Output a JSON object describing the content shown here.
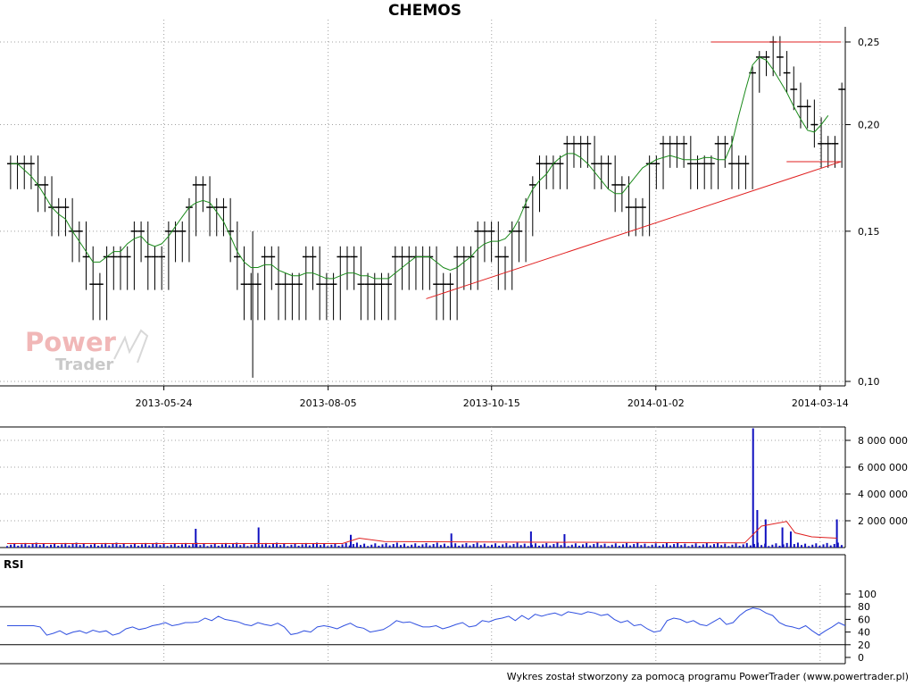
{
  "title": "CHEMOS",
  "footer": "Wykres został stworzony za pomocą programu PowerTrader (www.powertrader.pl)",
  "logo": {
    "line1": "Power",
    "line2": "Trader"
  },
  "colors": {
    "price": "#000000",
    "ma": "#1a8a1a",
    "trendline": "#e02020",
    "volume": "#1010c0",
    "volume_ma": "#e02020",
    "rsi": "#3050e0",
    "grid": "#a0a0a0"
  },
  "chart_data": [
    {
      "type": "candlestick",
      "title": "CHEMOS",
      "x_tick_labels": [
        "2013-05-24",
        "2013-08-05",
        "2013-10-15",
        "2014-01-02",
        "2014-03-14"
      ],
      "y_tick_labels": [
        "0,25",
        "0,20",
        "0,15",
        "0,10"
      ],
      "y_ticks": [
        0.25,
        0.2,
        0.15,
        0.1
      ],
      "ylim": [
        0.1,
        0.25
      ],
      "y_scale": "log",
      "grid": true,
      "close": [
        0.18,
        0.18,
        0.18,
        0.18,
        0.17,
        0.17,
        0.16,
        0.16,
        0.16,
        0.15,
        0.15,
        0.14,
        0.13,
        0.13,
        0.14,
        0.14,
        0.14,
        0.14,
        0.15,
        0.15,
        0.14,
        0.14,
        0.14,
        0.15,
        0.15,
        0.15,
        0.16,
        0.17,
        0.17,
        0.16,
        0.16,
        0.16,
        0.15,
        0.14,
        0.13,
        0.13,
        0.13,
        0.14,
        0.14,
        0.13,
        0.13,
        0.13,
        0.13,
        0.14,
        0.14,
        0.13,
        0.13,
        0.13,
        0.14,
        0.14,
        0.14,
        0.13,
        0.13,
        0.13,
        0.13,
        0.13,
        0.14,
        0.14,
        0.14,
        0.14,
        0.14,
        0.14,
        0.13,
        0.13,
        0.13,
        0.14,
        0.14,
        0.14,
        0.15,
        0.15,
        0.15,
        0.14,
        0.14,
        0.15,
        0.15,
        0.16,
        0.17,
        0.18,
        0.18,
        0.18,
        0.18,
        0.19,
        0.19,
        0.19,
        0.19,
        0.18,
        0.18,
        0.18,
        0.17,
        0.17,
        0.16,
        0.16,
        0.16,
        0.18,
        0.18,
        0.19,
        0.19,
        0.19,
        0.19,
        0.18,
        0.18,
        0.18,
        0.18,
        0.19,
        0.19,
        0.18,
        0.18,
        0.18,
        0.23,
        0.24,
        0.24,
        0.25,
        0.24,
        0.23,
        0.22,
        0.21,
        0.21,
        0.2,
        0.19,
        0.19,
        0.19,
        0.22
      ],
      "moving_average": [
        0.18,
        0.18,
        0.177,
        0.174,
        0.17,
        0.165,
        0.16,
        0.157,
        0.155,
        0.15,
        0.146,
        0.142,
        0.138,
        0.138,
        0.14,
        0.142,
        0.142,
        0.145,
        0.147,
        0.148,
        0.145,
        0.144,
        0.145,
        0.148,
        0.152,
        0.156,
        0.16,
        0.162,
        0.163,
        0.162,
        0.158,
        0.154,
        0.148,
        0.142,
        0.138,
        0.136,
        0.136,
        0.137,
        0.137,
        0.135,
        0.134,
        0.133,
        0.133,
        0.134,
        0.134,
        0.133,
        0.132,
        0.132,
        0.133,
        0.134,
        0.134,
        0.133,
        0.133,
        0.132,
        0.132,
        0.132,
        0.134,
        0.136,
        0.138,
        0.14,
        0.14,
        0.14,
        0.138,
        0.136,
        0.135,
        0.136,
        0.138,
        0.14,
        0.143,
        0.145,
        0.146,
        0.146,
        0.147,
        0.15,
        0.155,
        0.162,
        0.168,
        0.172,
        0.175,
        0.18,
        0.183,
        0.185,
        0.185,
        0.183,
        0.18,
        0.176,
        0.172,
        0.168,
        0.166,
        0.166,
        0.17,
        0.174,
        0.178,
        0.18,
        0.182,
        0.183,
        0.184,
        0.183,
        0.182,
        0.182,
        0.182,
        0.183,
        0.183,
        0.182,
        0.182,
        0.19,
        0.205,
        0.22,
        0.235,
        0.24,
        0.238,
        0.232,
        0.225,
        0.218,
        0.21,
        0.203,
        0.197,
        0.196,
        0.2,
        0.205
      ],
      "trendlines": [
        {
          "from": [
            0.5,
            0.125
          ],
          "to": [
            0.995,
            0.181
          ]
        },
        {
          "from": [
            0.84,
            0.25
          ],
          "to": [
            0.995,
            0.25
          ]
        },
        {
          "from": [
            0.93,
            0.181
          ],
          "to": [
            0.995,
            0.181
          ]
        }
      ]
    },
    {
      "type": "bar",
      "title": "",
      "y_tick_labels": [
        "8 000 000",
        "6 000 000",
        "4 000 000",
        "2 000 000"
      ],
      "y_ticks": [
        8000000,
        6000000,
        4000000,
        2000000
      ],
      "ylim": [
        0,
        9000000
      ],
      "grid": true,
      "spikes": [
        {
          "x": 0.225,
          "value": 1400000
        },
        {
          "x": 0.3,
          "value": 1500000
        },
        {
          "x": 0.41,
          "value": 950000
        },
        {
          "x": 0.53,
          "value": 1050000
        },
        {
          "x": 0.625,
          "value": 1200000
        },
        {
          "x": 0.665,
          "value": 1000000
        },
        {
          "x": 0.89,
          "value": 8900000
        },
        {
          "x": 0.895,
          "value": 2800000
        },
        {
          "x": 0.905,
          "value": 2100000
        },
        {
          "x": 0.925,
          "value": 1500000
        },
        {
          "x": 0.935,
          "value": 1200000
        },
        {
          "x": 0.99,
          "value": 2100000
        }
      ],
      "baseline_volume": 280000,
      "volume_ma": [
        {
          "x": 0.0,
          "value": 300000
        },
        {
          "x": 0.4,
          "value": 300000
        },
        {
          "x": 0.42,
          "value": 700000
        },
        {
          "x": 0.45,
          "value": 450000
        },
        {
          "x": 0.88,
          "value": 350000
        },
        {
          "x": 0.9,
          "value": 1600000
        },
        {
          "x": 0.93,
          "value": 1950000
        },
        {
          "x": 0.94,
          "value": 1100000
        },
        {
          "x": 0.96,
          "value": 800000
        },
        {
          "x": 0.99,
          "value": 700000
        }
      ]
    },
    {
      "type": "line",
      "title": "RSI",
      "y_tick_labels": [
        "100",
        "80",
        "60",
        "40",
        "20",
        "0"
      ],
      "y_ticks": [
        100,
        80,
        60,
        40,
        20,
        0
      ],
      "ylim": [
        0,
        100
      ],
      "reference_lines": [
        80,
        20
      ],
      "grid": true,
      "values": [
        50,
        50,
        50,
        50,
        50,
        48,
        35,
        38,
        42,
        36,
        40,
        42,
        38,
        43,
        40,
        42,
        35,
        38,
        45,
        48,
        44,
        46,
        50,
        52,
        55,
        50,
        52,
        55,
        55,
        56,
        62,
        58,
        65,
        60,
        58,
        56,
        52,
        50,
        55,
        52,
        50,
        54,
        48,
        36,
        38,
        42,
        40,
        48,
        50,
        48,
        45,
        50,
        54,
        48,
        46,
        40,
        42,
        44,
        50,
        58,
        55,
        56,
        52,
        48,
        48,
        50,
        45,
        48,
        52,
        55,
        48,
        50,
        58,
        56,
        60,
        62,
        65,
        58,
        66,
        60,
        68,
        65,
        68,
        70,
        66,
        72,
        70,
        68,
        72,
        70,
        66,
        68,
        60,
        55,
        58,
        50,
        52,
        45,
        40,
        42,
        58,
        62,
        60,
        55,
        58,
        52,
        50,
        56,
        62,
        52,
        55,
        66,
        74,
        78,
        76,
        70,
        66,
        55,
        50,
        48,
        45,
        50,
        42,
        35,
        42,
        48,
        55,
        50
      ]
    }
  ]
}
